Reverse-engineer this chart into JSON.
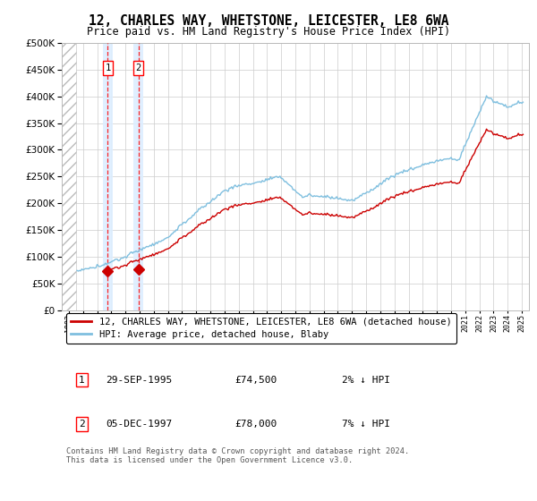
{
  "title": "12, CHARLES WAY, WHETSTONE, LEICESTER, LE8 6WA",
  "subtitle": "Price paid vs. HM Land Registry's House Price Index (HPI)",
  "transactions": [
    {
      "date_num": 1995.75,
      "price": 74500,
      "label": "1",
      "date_str": "29-SEP-1995",
      "pct": "2% ↓ HPI"
    },
    {
      "date_num": 1997.92,
      "price": 78000,
      "label": "2",
      "date_str": "05-DEC-1997",
      "pct": "7% ↓ HPI"
    }
  ],
  "legend_line1": "12, CHARLES WAY, WHETSTONE, LEICESTER, LE8 6WA (detached house)",
  "legend_line2": "HPI: Average price, detached house, Blaby",
  "table_rows": [
    [
      "1",
      "29-SEP-1995",
      "£74,500",
      "2% ↓ HPI"
    ],
    [
      "2",
      "05-DEC-1997",
      "£78,000",
      "7% ↓ HPI"
    ]
  ],
  "footnote": "Contains HM Land Registry data © Crown copyright and database right 2024.\nThis data is licensed under the Open Government Licence v3.0.",
  "ylim": [
    0,
    500000
  ],
  "xlim_left": 1992.5,
  "xlim_right": 2025.5,
  "hpi_color": "#7fbfdf",
  "price_color": "#cc0000",
  "shade_color": "#ddeeff",
  "grid_color": "#cccccc",
  "background_color": "#ffffff",
  "hatch_end": 1993.5
}
